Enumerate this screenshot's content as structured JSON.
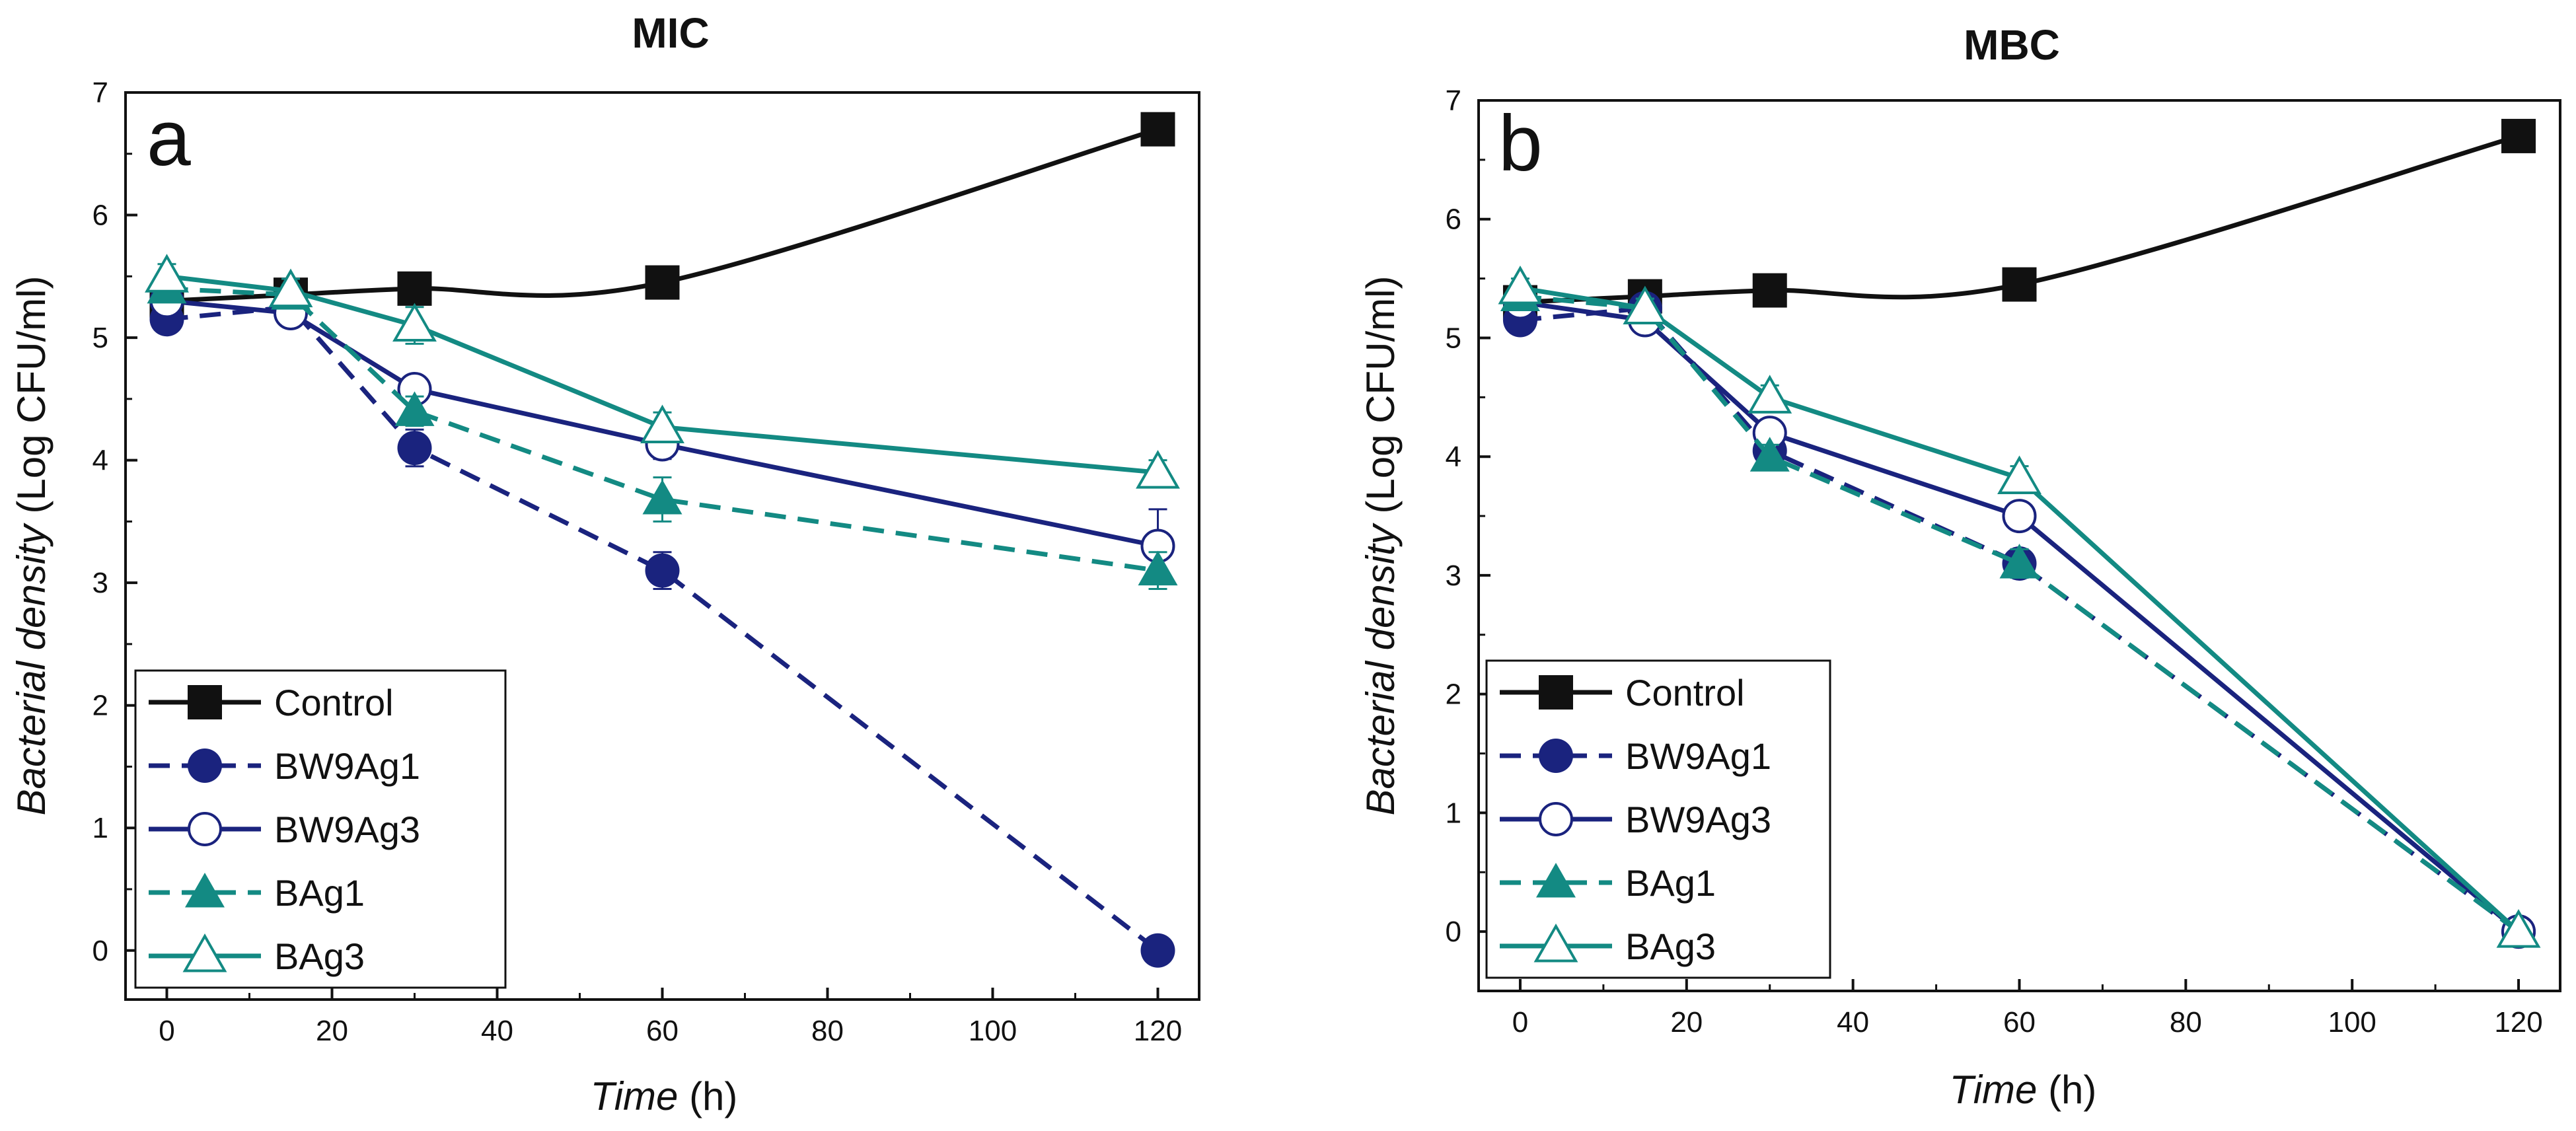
{
  "chart_data": [
    {
      "type": "line",
      "title": "MIC",
      "panel_label": "a",
      "xlabel_italic": "Time",
      "xlabel_unit": " (h)",
      "ylabel_italic": "Bacterial density",
      "ylabel_unit": " (Log CFU/ml)",
      "xlim": [
        -5,
        125
      ],
      "ylim": [
        -0.4,
        7
      ],
      "xticks": [
        0,
        20,
        40,
        60,
        80,
        100,
        120
      ],
      "yticks": [
        0,
        1,
        2,
        3,
        4,
        5,
        6,
        7
      ],
      "legend_position": "bottom-left",
      "series": [
        {
          "name": "Control",
          "x": [
            0,
            15,
            30,
            60,
            120
          ],
          "y": [
            5.3,
            5.35,
            5.4,
            5.45,
            6.7
          ],
          "error": [
            0.05,
            0.05,
            0.05,
            0.05,
            0.05
          ],
          "color": "#111111",
          "marker": "square",
          "dashed": false,
          "smooth": true
        },
        {
          "name": "BW9Ag1",
          "x": [
            0,
            15,
            30,
            60,
            120
          ],
          "y": [
            5.15,
            5.25,
            4.1,
            3.1,
            0.0
          ],
          "error": [
            0.08,
            0.08,
            0.15,
            0.15,
            0.02
          ],
          "color": "#1a237e",
          "marker": "circle-filled",
          "dashed": true,
          "smooth": false
        },
        {
          "name": "BW9Ag3",
          "x": [
            0,
            15,
            30,
            60,
            120
          ],
          "y": [
            5.3,
            5.2,
            4.58,
            4.13,
            3.3
          ],
          "error": [
            0.08,
            0.1,
            0.1,
            0.12,
            0.3
          ],
          "color": "#1a237e",
          "marker": "circle-open",
          "dashed": false,
          "smooth": false
        },
        {
          "name": "BAg1",
          "x": [
            0,
            15,
            30,
            60,
            120
          ],
          "y": [
            5.4,
            5.35,
            4.4,
            3.68,
            3.1
          ],
          "error": [
            0.08,
            0.08,
            0.12,
            0.18,
            0.15
          ],
          "color": "#138a83",
          "marker": "triangle-filled",
          "dashed": true,
          "smooth": false
        },
        {
          "name": "BAg3",
          "x": [
            0,
            15,
            30,
            60,
            120
          ],
          "y": [
            5.5,
            5.38,
            5.1,
            4.27,
            3.9
          ],
          "error": [
            0.1,
            0.1,
            0.15,
            0.12,
            0.1
          ],
          "color": "#138a83",
          "marker": "triangle-open",
          "dashed": false,
          "smooth": false
        }
      ]
    },
    {
      "type": "line",
      "title": "MBC",
      "panel_label": "b",
      "xlabel_italic": "Time",
      "xlabel_unit": " (h)",
      "ylabel_italic": "Bacterial density",
      "ylabel_unit": " (Log CFU/ml)",
      "xlim": [
        -5,
        125
      ],
      "ylim": [
        -0.5,
        7
      ],
      "xticks": [
        0,
        20,
        40,
        60,
        80,
        100,
        120
      ],
      "yticks": [
        0,
        1,
        2,
        3,
        4,
        5,
        6,
        7
      ],
      "legend_position": "bottom-left",
      "series": [
        {
          "name": "Control",
          "x": [
            0,
            15,
            30,
            60,
            120
          ],
          "y": [
            5.3,
            5.35,
            5.4,
            5.45,
            6.7
          ],
          "error": [
            0.05,
            0.05,
            0.05,
            0.05,
            0.05
          ],
          "color": "#111111",
          "marker": "square",
          "dashed": false,
          "smooth": true
        },
        {
          "name": "BW9Ag1",
          "x": [
            0,
            15,
            30,
            60,
            120
          ],
          "y": [
            5.15,
            5.25,
            4.05,
            3.1,
            0.0
          ],
          "error": [
            0.08,
            0.08,
            0.1,
            0.12,
            0.02
          ],
          "color": "#1a237e",
          "marker": "circle-filled",
          "dashed": true,
          "smooth": false
        },
        {
          "name": "BW9Ag3",
          "x": [
            0,
            15,
            30,
            60,
            120
          ],
          "y": [
            5.3,
            5.15,
            4.2,
            3.5,
            0.0
          ],
          "error": [
            0.08,
            0.1,
            0.1,
            0.1,
            0.02
          ],
          "color": "#1a237e",
          "marker": "circle-open",
          "dashed": false,
          "smooth": false
        },
        {
          "name": "BAg1",
          "x": [
            0,
            15,
            30,
            60,
            120
          ],
          "y": [
            5.35,
            5.25,
            4.0,
            3.1,
            0.0
          ],
          "error": [
            0.08,
            0.08,
            0.1,
            0.12,
            0.02
          ],
          "color": "#138a83",
          "marker": "triangle-filled",
          "dashed": true,
          "smooth": false
        },
        {
          "name": "BAg3",
          "x": [
            0,
            15,
            30,
            60,
            120
          ],
          "y": [
            5.42,
            5.25,
            4.5,
            3.82,
            0.0
          ],
          "error": [
            0.08,
            0.08,
            0.1,
            0.1,
            0.02
          ],
          "color": "#138a83",
          "marker": "triangle-open",
          "dashed": false,
          "smooth": false
        }
      ]
    }
  ]
}
